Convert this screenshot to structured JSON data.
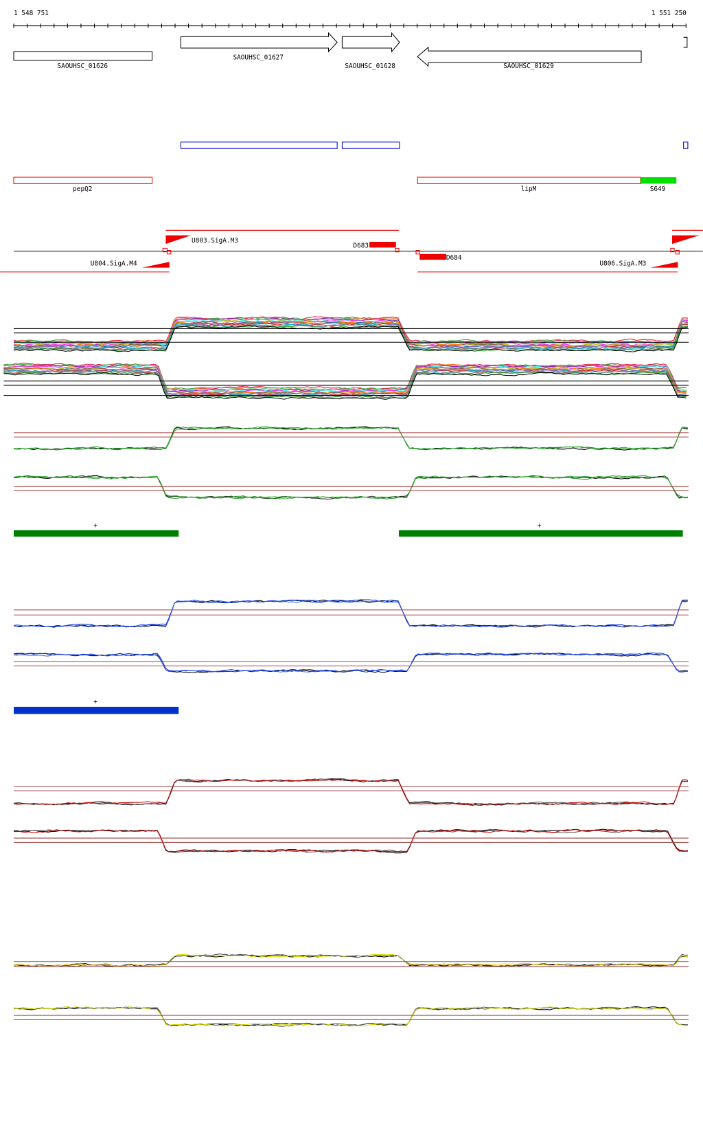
{
  "ruler": {
    "start": "1 548 751",
    "end": "1 551 250"
  },
  "genes": [
    {
      "label": "SAOUHSC_01626"
    },
    {
      "label": "SAOUHSC_01627"
    },
    {
      "label": "SAOUHSC_01628"
    },
    {
      "label": "SAOUHSC_01629"
    }
  ],
  "features": [
    {
      "label": "pepQ2"
    },
    {
      "label": "lipM"
    },
    {
      "label": "S649"
    }
  ],
  "promoters": [
    {
      "label": "U803.SigA.M3"
    },
    {
      "label": "U804.SigA.M4"
    },
    {
      "label": "U806.SigA.M3"
    }
  ],
  "terminators": [
    {
      "label": "D683"
    },
    {
      "label": "D684"
    }
  ],
  "strand_marks": [
    "+",
    "+",
    "+"
  ]
}
